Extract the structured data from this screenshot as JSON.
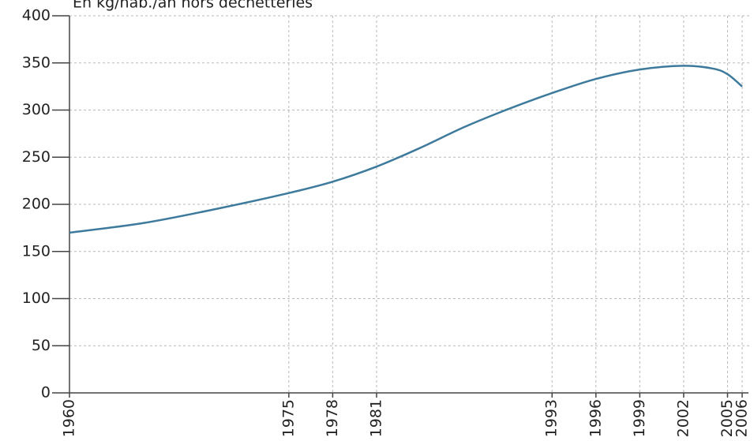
{
  "chart_data": {
    "type": "line",
    "title": "En kg/hab./an hors déchetteries",
    "x": [
      1960,
      1965,
      1970,
      1975,
      1978,
      1981,
      1984,
      1987,
      1990,
      1993,
      1996,
      1999,
      2002,
      2004,
      2005,
      2006
    ],
    "values": [
      170,
      180,
      195,
      212,
      224,
      240,
      260,
      282,
      301,
      318,
      333,
      343,
      347,
      344,
      338,
      325
    ],
    "color": "#3d7a9c",
    "xlim": [
      1960,
      2006
    ],
    "xticks": [
      1960,
      1975,
      1978,
      1981,
      1993,
      1996,
      1999,
      2002,
      2005,
      2006
    ],
    "ylim": [
      0,
      400
    ],
    "yticks": [
      0,
      50,
      100,
      150,
      200,
      250,
      300,
      350,
      400
    ],
    "grid": true
  }
}
